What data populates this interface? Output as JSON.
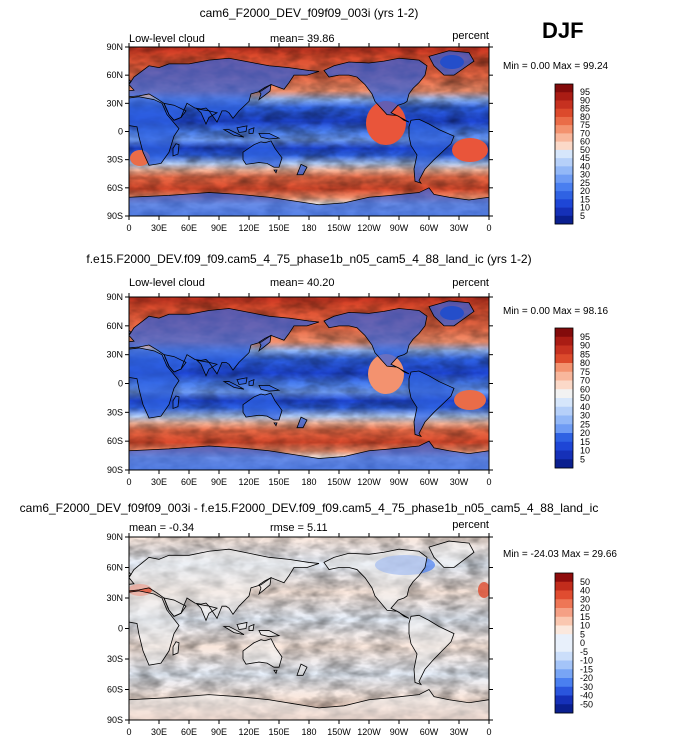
{
  "season": "DJF",
  "colors": {
    "levels_seq": [
      "#0a1f8f",
      "#1530b8",
      "#1e46d6",
      "#2f62e3",
      "#4a7ff0",
      "#6f9cf4",
      "#93b8f7",
      "#b6d0f9",
      "#d6e6fb",
      "#f2f2f2",
      "#fbd9c8",
      "#f8b79c",
      "#f3926f",
      "#ea6c48",
      "#dc4a2c",
      "#c63120",
      "#aa1c14",
      "#830b0b"
    ],
    "levels_diff": [
      "#0a1f8f",
      "#1530b8",
      "#2a55dd",
      "#4a7ff0",
      "#78a5f5",
      "#a4c4f8",
      "#cbdefa",
      "#e8f0fb",
      "#fbe8dd",
      "#fac7b0",
      "#f5a085",
      "#ee7656",
      "#e04c30",
      "#c22c1c",
      "#8f0c0c"
    ]
  },
  "chart_data": [
    {
      "type": "heatmap",
      "title": "cam6_F2000_DEV_f09f09_003i (yrs 1-2)",
      "left_label": "Low-level cloud",
      "center_label": "mean=  39.86",
      "right_label": "percent",
      "minmax_label": "Min =   0.00 Max =  99.24",
      "min": 0.0,
      "max": 99.24,
      "mean": 39.86,
      "x_ticks": [
        "0",
        "30E",
        "60E",
        "90E",
        "120E",
        "150E",
        "180",
        "150W",
        "120W",
        "90W",
        "60W",
        "30W",
        "0"
      ],
      "y_ticks": [
        "90N",
        "60N",
        "30N",
        "0",
        "30S",
        "60S",
        "90S"
      ],
      "colorbar_labels": [
        "95",
        "90",
        "85",
        "80",
        "75",
        "70",
        "60",
        "50",
        "45",
        "40",
        "30",
        "25",
        "20",
        "15",
        "10",
        "5"
      ]
    },
    {
      "type": "heatmap",
      "title": "f.e15.F2000_DEV.f09_f09.cam5_4_75_phase1b_n05_cam5_4_88_land_ic (yrs 1-2)",
      "left_label": "Low-level cloud",
      "center_label": "mean=  40.20",
      "right_label": "percent",
      "minmax_label": "Min =   0.00 Max =  98.16",
      "min": 0.0,
      "max": 98.16,
      "mean": 40.2,
      "x_ticks": [
        "0",
        "30E",
        "60E",
        "90E",
        "120E",
        "150E",
        "180",
        "150W",
        "120W",
        "90W",
        "60W",
        "30W",
        "0"
      ],
      "y_ticks": [
        "90N",
        "60N",
        "30N",
        "0",
        "30S",
        "60S",
        "90S"
      ],
      "colorbar_labels": [
        "95",
        "90",
        "85",
        "80",
        "75",
        "70",
        "60",
        "50",
        "40",
        "30",
        "25",
        "20",
        "15",
        "10",
        "5"
      ]
    },
    {
      "type": "heatmap",
      "title": "cam6_F2000_DEV_f09f09_003i - f.e15.F2000_DEV.f09_f09.cam5_4_75_phase1b_n05_cam5_4_88_land_ic",
      "left_label": "mean =  -0.34",
      "center_label": "rmse =   5.11",
      "right_label": "percent",
      "minmax_label": "Min = -24.03 Max =  29.66",
      "min": -24.03,
      "max": 29.66,
      "mean": -0.34,
      "rmse": 5.11,
      "x_ticks": [
        "0",
        "30E",
        "60E",
        "90E",
        "120E",
        "150E",
        "180",
        "150W",
        "120W",
        "90W",
        "60W",
        "30W",
        "0"
      ],
      "y_ticks": [
        "90N",
        "60N",
        "30N",
        "0",
        "30S",
        "60S",
        "90S"
      ],
      "colorbar_labels": [
        "50",
        "40",
        "30",
        "20",
        "15",
        "10",
        "5",
        "0",
        "-5",
        "-10",
        "-15",
        "-20",
        "-30",
        "-40",
        "-50"
      ]
    }
  ]
}
